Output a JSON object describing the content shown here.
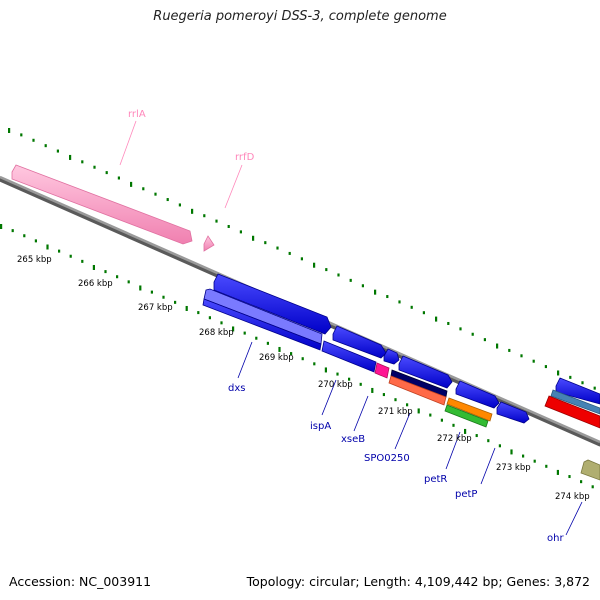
{
  "header": {
    "title": "Ruegeria pomeroyi DSS-3, complete genome"
  },
  "footer": {
    "accession": "Accession: NC_003911",
    "summary": "Topology: circular; Length: 4,109,442 bp; Genes: 3,872"
  },
  "scale": {
    "ticks": [
      "265 kbp",
      "266 kbp",
      "267 kbp",
      "268 kbp",
      "269 kbp",
      "270 kbp",
      "271 kbp",
      "272 kbp",
      "273 kbp",
      "274 kbp"
    ]
  },
  "genes": [
    {
      "id": "rrlA",
      "label": "rrlA",
      "color": "#ff99cc"
    },
    {
      "id": "rrfD",
      "label": "rrfD",
      "color": "#ff99cc"
    },
    {
      "id": "dxs",
      "label": "dxs",
      "color": "#0000cc"
    },
    {
      "id": "ispA",
      "label": "ispA",
      "color": "#0000cc"
    },
    {
      "id": "xseB",
      "label": "xseB",
      "color": "#0000cc"
    },
    {
      "id": "SPO0250",
      "label": "SPO0250",
      "color": "#0000cc"
    },
    {
      "id": "petR",
      "label": "petR",
      "color": "#0000cc"
    },
    {
      "id": "petP",
      "label": "petP",
      "color": "#0000cc"
    },
    {
      "id": "ohr",
      "label": "ohr",
      "color": "#0000cc"
    }
  ],
  "colors": {
    "backbone": "#888888",
    "gc_dots": "#007700",
    "cds": "#0000ee",
    "rna": "#ff99cc",
    "label_gene": "#0000aa",
    "label_rna": "#ff88bb",
    "cog_magenta": "#ff1493",
    "cog_navy": "#000066",
    "cog_salmon": "#ff6040",
    "cog_orange": "#ff8800",
    "cog_green": "#33bb33",
    "cog_lavender": "#8a8aff",
    "cog_red": "#ee0000",
    "cog_steel": "#4682b4",
    "cog_khaki": "#b0ae70"
  }
}
